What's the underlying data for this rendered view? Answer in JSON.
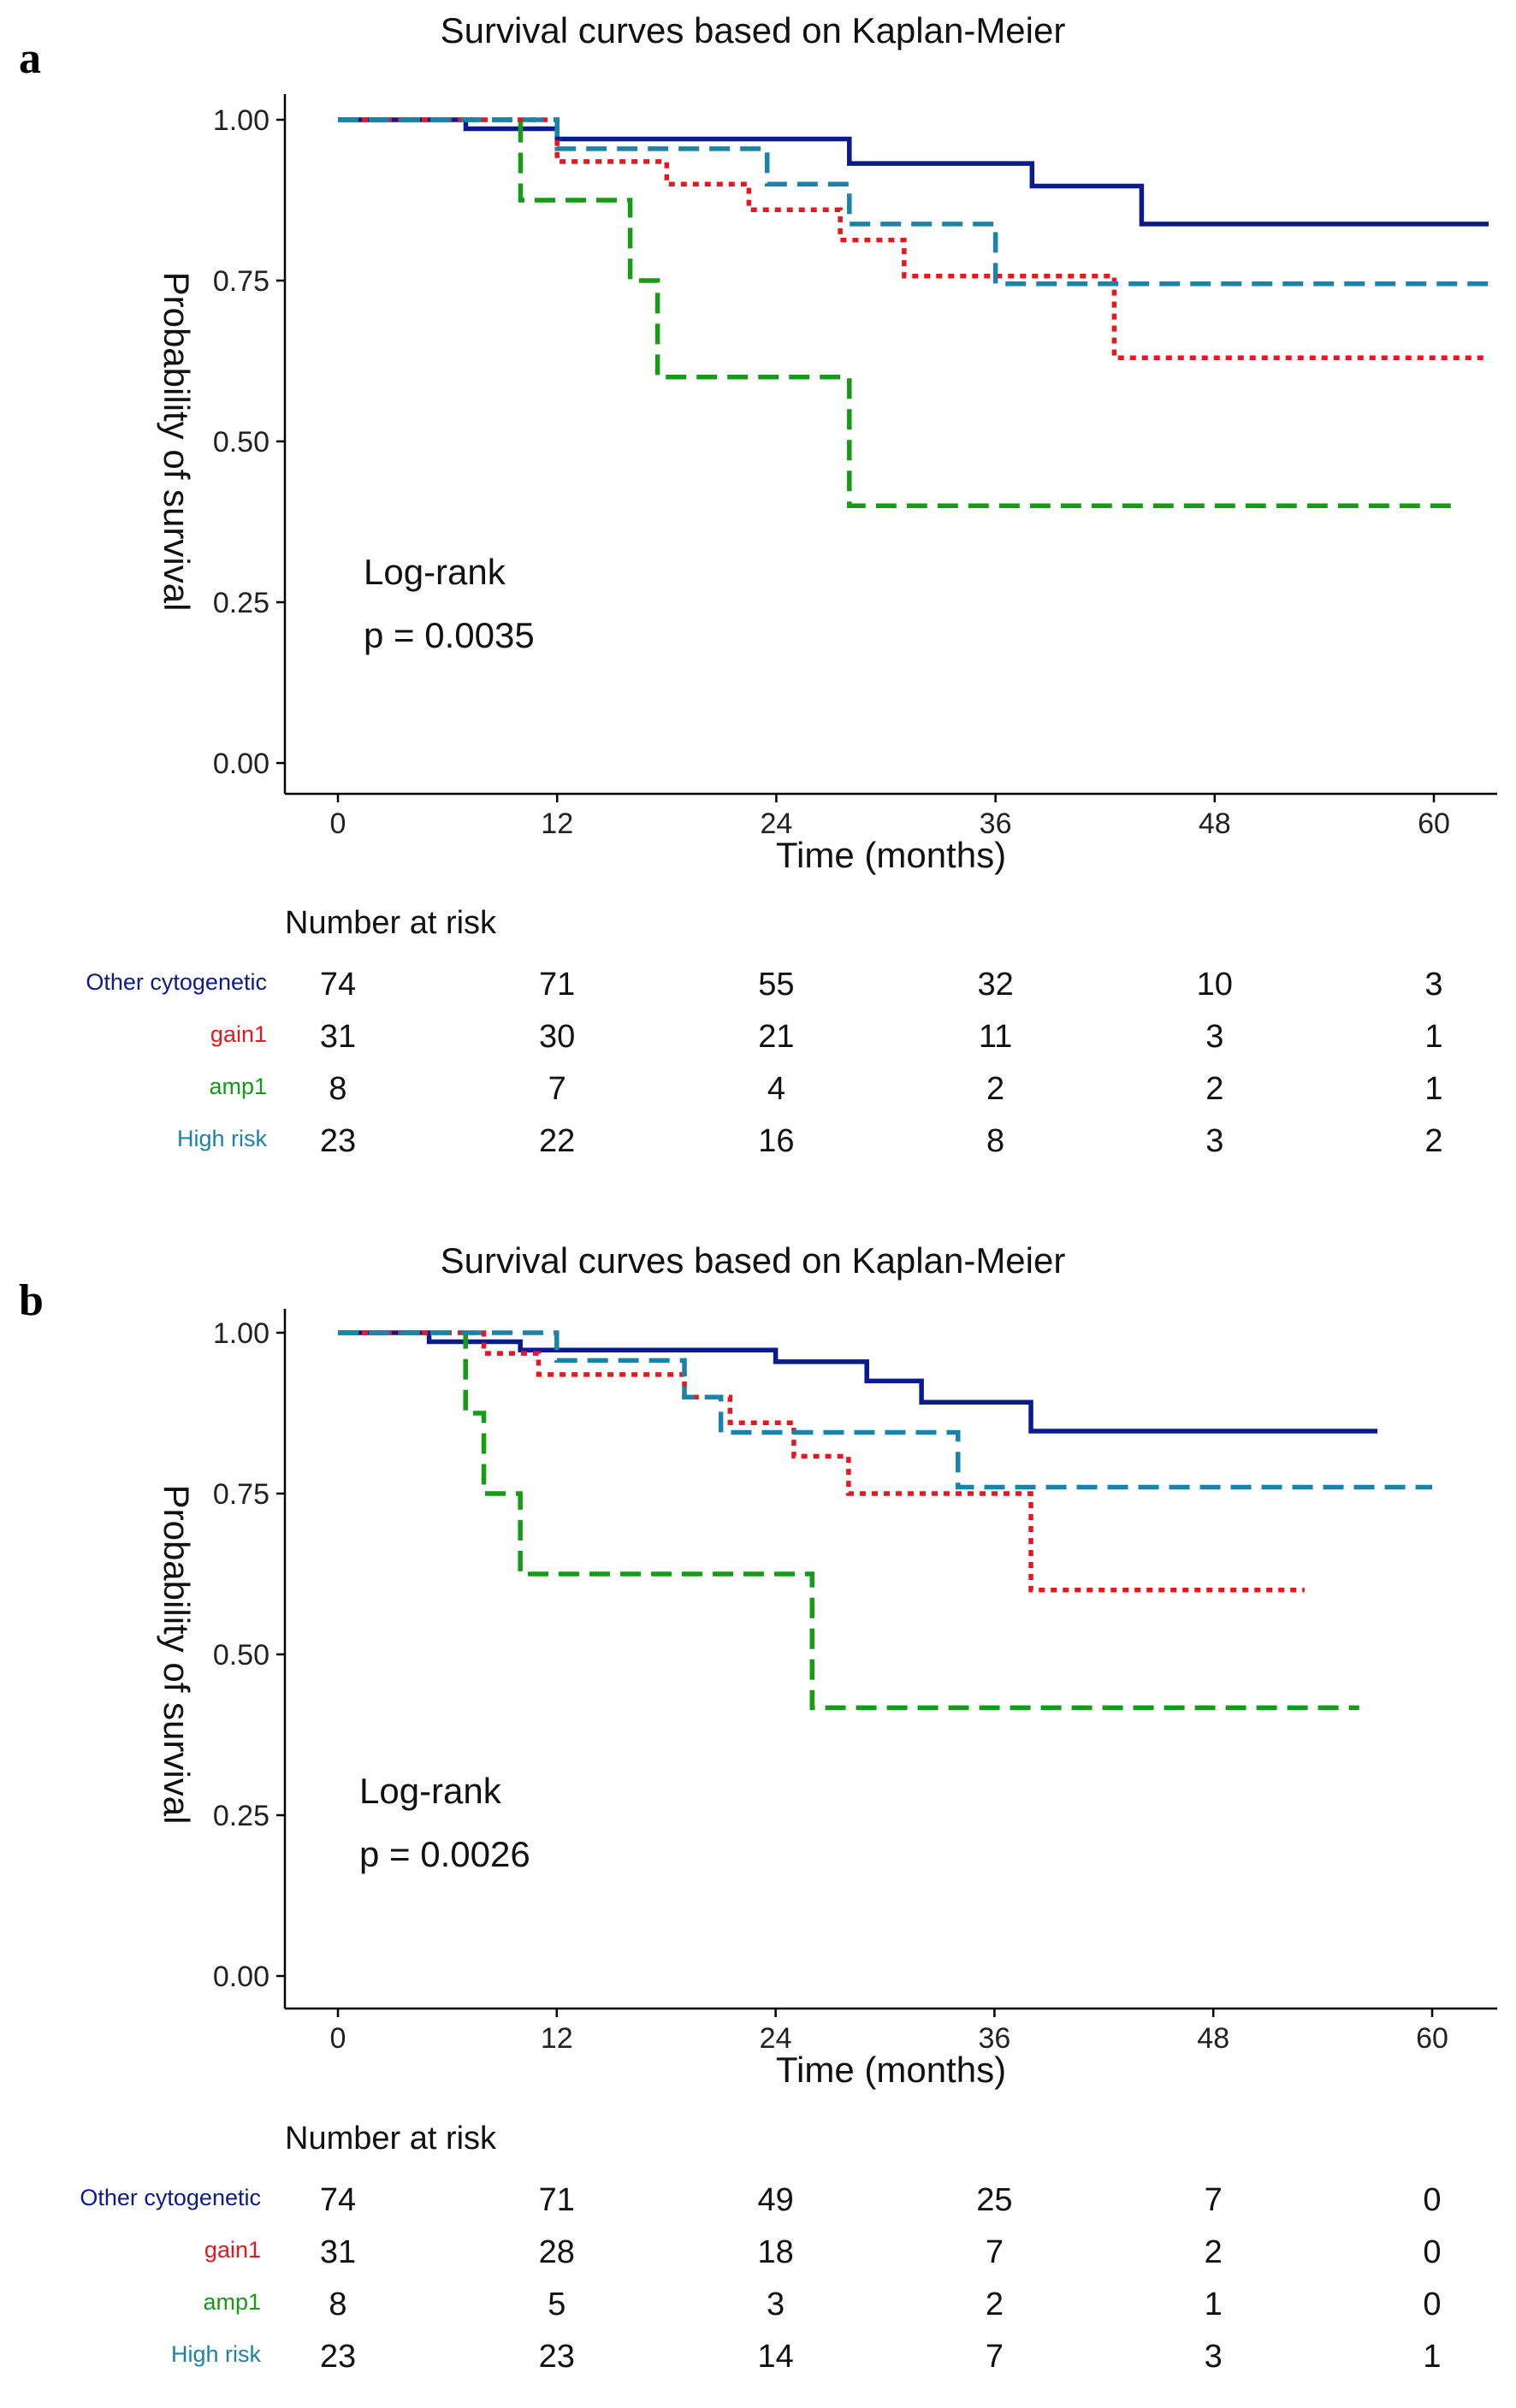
{
  "panels": [
    {
      "letter": "a",
      "annotation_line1": "Log-rank",
      "annotation_line2": "p = 0.0035",
      "risk_title": "Number at risk",
      "risk_table": [
        {
          "name": "Other cytogenetic",
          "color": "#0b1a8c",
          "values": [
            "74",
            "71",
            "55",
            "32",
            "10",
            "3"
          ]
        },
        {
          "name": "gain1",
          "color": "#e4181f",
          "values": [
            "31",
            "30",
            "21",
            "11",
            "3",
            "1"
          ]
        },
        {
          "name": "amp1",
          "color": "#159b15",
          "values": [
            "8",
            "7",
            "4",
            "2",
            "2",
            "1"
          ]
        },
        {
          "name": "High risk",
          "color": "#1b82a8",
          "values": [
            "23",
            "22",
            "16",
            "8",
            "3",
            "2"
          ]
        }
      ]
    },
    {
      "letter": "b",
      "annotation_line1": "Log-rank",
      "annotation_line2": "p = 0.0026",
      "risk_title": "Number at risk",
      "risk_table": [
        {
          "name": "Other cytogenetic",
          "color": "#0b1a8c",
          "values": [
            "74",
            "71",
            "49",
            "25",
            "7",
            "0"
          ]
        },
        {
          "name": "gain1",
          "color": "#e4181f",
          "values": [
            "31",
            "28",
            "18",
            "7",
            "2",
            "0"
          ]
        },
        {
          "name": "amp1",
          "color": "#159b15",
          "values": [
            "8",
            "5",
            "3",
            "2",
            "1",
            "0"
          ]
        },
        {
          "name": "High risk",
          "color": "#1b82a8",
          "values": [
            "23",
            "23",
            "14",
            "7",
            "3",
            "1"
          ]
        }
      ]
    }
  ],
  "chart_data": [
    {
      "type": "line",
      "step": true,
      "title": "Survival curves based on Kaplan-Meier",
      "xlabel": "Time (months)",
      "ylabel": "Probability of survival",
      "xlim": [
        -3,
        63
      ],
      "ylim": [
        0,
        1
      ],
      "xticks": [
        0,
        12,
        24,
        36,
        48,
        60
      ],
      "yticks": [
        0,
        0.25,
        0.5,
        0.75,
        1.0
      ],
      "xtick_labels": [
        "0",
        "12",
        "24",
        "36",
        "48",
        "60"
      ],
      "ytick_labels": [
        "0.00",
        "0.25",
        "0.50",
        "0.75",
        "1.00"
      ],
      "grid": false,
      "legend": "none",
      "series": [
        {
          "name": "Other cytogenetic",
          "color": "#0b1a8c",
          "dash": "solid",
          "x": [
            0,
            7,
            12,
            28,
            38,
            44,
            63
          ],
          "y": [
            1.0,
            0.986,
            0.97,
            0.932,
            0.897,
            0.838,
            0.838
          ]
        },
        {
          "name": "gain1",
          "color": "#e4181f",
          "dash": "dotted",
          "x": [
            0,
            12,
            18,
            22.5,
            27.5,
            31,
            42.5,
            63
          ],
          "y": [
            1.0,
            0.935,
            0.9,
            0.86,
            0.813,
            0.757,
            0.63,
            0.63
          ]
        },
        {
          "name": "amp1",
          "color": "#159b15",
          "dash": "dashed",
          "x": [
            0,
            10,
            16,
            17.5,
            28,
            61
          ],
          "y": [
            1.0,
            0.875,
            0.75,
            0.6,
            0.4,
            0.4
          ]
        },
        {
          "name": "High risk",
          "color": "#1b82a8",
          "dash": "dashed",
          "x": [
            0,
            12,
            23.5,
            28,
            36,
            63
          ],
          "y": [
            1.0,
            0.955,
            0.9,
            0.838,
            0.745,
            0.745
          ]
        }
      ]
    },
    {
      "type": "line",
      "step": true,
      "title": "Survival curves based on Kaplan-Meier",
      "xlabel": "Time (months)",
      "ylabel": "Probability of survival",
      "xlim": [
        -3,
        63
      ],
      "ylim": [
        0,
        1
      ],
      "xticks": [
        0,
        12,
        24,
        36,
        48,
        60
      ],
      "yticks": [
        0,
        0.25,
        0.5,
        0.75,
        1.0
      ],
      "xtick_labels": [
        "0",
        "12",
        "24",
        "36",
        "48",
        "60"
      ],
      "ytick_labels": [
        "0.00",
        "0.25",
        "0.50",
        "0.75",
        "1.00"
      ],
      "grid": false,
      "legend": "none",
      "series": [
        {
          "name": "Other cytogenetic",
          "color": "#0b1a8c",
          "dash": "solid",
          "x": [
            0,
            5,
            10,
            24,
            29,
            32,
            38,
            57
          ],
          "y": [
            1.0,
            0.986,
            0.973,
            0.955,
            0.925,
            0.892,
            0.847,
            0.847
          ]
        },
        {
          "name": "gain1",
          "color": "#e4181f",
          "dash": "dotted",
          "x": [
            0,
            8,
            11,
            19,
            21.5,
            25,
            28,
            38,
            53
          ],
          "y": [
            1.0,
            0.968,
            0.935,
            0.9,
            0.86,
            0.808,
            0.75,
            0.6,
            0.6
          ]
        },
        {
          "name": "amp1",
          "color": "#159b15",
          "dash": "dashed",
          "x": [
            0,
            7,
            8,
            10,
            26,
            56
          ],
          "y": [
            1.0,
            0.875,
            0.75,
            0.625,
            0.417,
            0.417
          ]
        },
        {
          "name": "High risk",
          "color": "#1b82a8",
          "dash": "dashed",
          "x": [
            0,
            12,
            19,
            21,
            34,
            60
          ],
          "y": [
            1.0,
            0.957,
            0.9,
            0.845,
            0.76,
            0.76
          ]
        }
      ]
    }
  ]
}
